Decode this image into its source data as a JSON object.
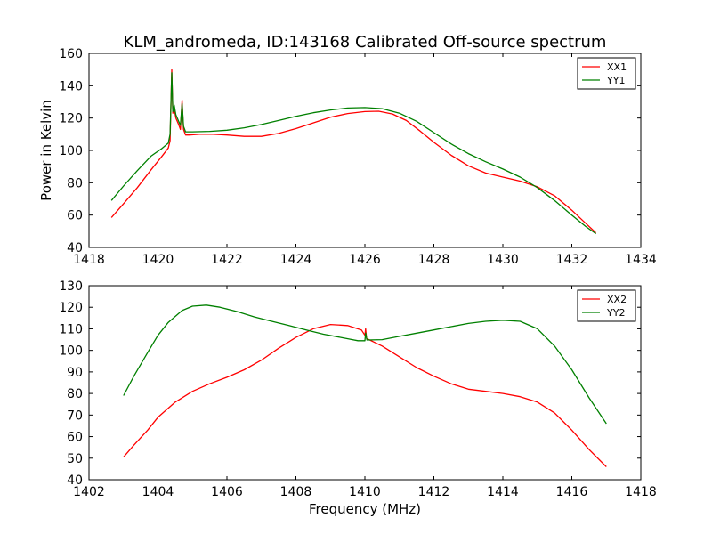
{
  "chart_data": [
    {
      "type": "line",
      "title": "KLM_andromeda, ID:143168 Calibrated Off-source spectrum",
      "xlabel": "",
      "ylabel": "Power in Kelvin",
      "xlim": [
        1418,
        1434
      ],
      "ylim": [
        40,
        160
      ],
      "xticks": [
        1418,
        1420,
        1422,
        1424,
        1426,
        1428,
        1430,
        1432,
        1434
      ],
      "yticks": [
        40,
        60,
        80,
        100,
        120,
        140,
        160
      ],
      "legend": "top-right",
      "grid": false,
      "series": [
        {
          "name": "XX1",
          "color": "#ff0000",
          "points": [
            [
              1418.65,
              58.5
            ],
            [
              1419.0,
              67
            ],
            [
              1419.4,
              77
            ],
            [
              1419.8,
              88
            ],
            [
              1420.1,
              96
            ],
            [
              1420.3,
              101.5
            ],
            [
              1420.35,
              106
            ],
            [
              1420.4,
              150
            ],
            [
              1420.43,
              123
            ],
            [
              1420.47,
              126
            ],
            [
              1420.52,
              120
            ],
            [
              1420.6,
              116
            ],
            [
              1420.65,
              113
            ],
            [
              1420.7,
              131
            ],
            [
              1420.74,
              113
            ],
            [
              1420.8,
              109.5
            ],
            [
              1420.9,
              109.5
            ],
            [
              1421.2,
              110
            ],
            [
              1421.6,
              110
            ],
            [
              1422.0,
              109.5
            ],
            [
              1422.5,
              108.7
            ],
            [
              1423.0,
              108.7
            ],
            [
              1423.5,
              110.5
            ],
            [
              1424.0,
              113.5
            ],
            [
              1424.5,
              117
            ],
            [
              1425.0,
              120.5
            ],
            [
              1425.5,
              122.8
            ],
            [
              1426.0,
              124
            ],
            [
              1426.4,
              124.2
            ],
            [
              1426.8,
              122.5
            ],
            [
              1427.2,
              118.5
            ],
            [
              1427.6,
              112
            ],
            [
              1428.0,
              105
            ],
            [
              1428.5,
              97
            ],
            [
              1429.0,
              90.5
            ],
            [
              1429.5,
              86
            ],
            [
              1430.0,
              83.5
            ],
            [
              1430.5,
              81
            ],
            [
              1431.0,
              77.5
            ],
            [
              1431.5,
              72
            ],
            [
              1432.0,
              63
            ],
            [
              1432.4,
              55
            ],
            [
              1432.7,
              49
            ]
          ]
        },
        {
          "name": "YY1",
          "color": "#008000",
          "points": [
            [
              1418.65,
              69
            ],
            [
              1419.0,
              78
            ],
            [
              1419.4,
              87.5
            ],
            [
              1419.8,
              96.5
            ],
            [
              1420.1,
              101
            ],
            [
              1420.3,
              104.5
            ],
            [
              1420.35,
              110
            ],
            [
              1420.4,
              148
            ],
            [
              1420.43,
              124
            ],
            [
              1420.47,
              128
            ],
            [
              1420.52,
              122
            ],
            [
              1420.6,
              118
            ],
            [
              1420.65,
              115.5
            ],
            [
              1420.7,
              129
            ],
            [
              1420.74,
              115
            ],
            [
              1420.8,
              111.5
            ],
            [
              1421.0,
              111.5
            ],
            [
              1421.5,
              111.8
            ],
            [
              1422.0,
              112.5
            ],
            [
              1422.5,
              114
            ],
            [
              1423.0,
              116
            ],
            [
              1423.5,
              118.5
            ],
            [
              1424.0,
              121
            ],
            [
              1424.5,
              123.3
            ],
            [
              1425.0,
              125
            ],
            [
              1425.5,
              126.2
            ],
            [
              1426.0,
              126.5
            ],
            [
              1426.5,
              125.8
            ],
            [
              1427.0,
              123
            ],
            [
              1427.5,
              118
            ],
            [
              1428.0,
              111
            ],
            [
              1428.5,
              104
            ],
            [
              1429.0,
              98
            ],
            [
              1429.5,
              93
            ],
            [
              1430.0,
              88.5
            ],
            [
              1430.5,
              83.5
            ],
            [
              1431.0,
              77
            ],
            [
              1431.5,
              69
            ],
            [
              1432.0,
              60
            ],
            [
              1432.4,
              53
            ],
            [
              1432.7,
              48.5
            ]
          ]
        }
      ]
    },
    {
      "type": "line",
      "title": "",
      "xlabel": "Frequency (MHz)",
      "ylabel": "",
      "xlim": [
        1402,
        1418
      ],
      "ylim": [
        40,
        130
      ],
      "xticks": [
        1402,
        1404,
        1406,
        1408,
        1410,
        1412,
        1414,
        1416,
        1418
      ],
      "yticks": [
        40,
        50,
        60,
        70,
        80,
        90,
        100,
        110,
        120,
        130
      ],
      "legend": "top-right",
      "grid": false,
      "series": [
        {
          "name": "XX2",
          "color": "#ff0000",
          "points": [
            [
              1403.0,
              50.5
            ],
            [
              1403.3,
              56
            ],
            [
              1403.7,
              63
            ],
            [
              1404.0,
              69
            ],
            [
              1404.5,
              76
            ],
            [
              1405.0,
              81
            ],
            [
              1405.5,
              84.5
            ],
            [
              1406.0,
              87.5
            ],
            [
              1406.5,
              91
            ],
            [
              1407.0,
              95.5
            ],
            [
              1407.5,
              101
            ],
            [
              1408.0,
              106
            ],
            [
              1408.5,
              110
            ],
            [
              1409.0,
              112
            ],
            [
              1409.5,
              111.5
            ],
            [
              1409.9,
              109.5
            ],
            [
              1410.0,
              107
            ],
            [
              1410.02,
              110
            ],
            [
              1410.05,
              105.5
            ],
            [
              1410.5,
              102
            ],
            [
              1411.0,
              97
            ],
            [
              1411.5,
              92
            ],
            [
              1412.0,
              88
            ],
            [
              1412.5,
              84.5
            ],
            [
              1413.0,
              82
            ],
            [
              1413.5,
              81
            ],
            [
              1414.0,
              80
            ],
            [
              1414.5,
              78.5
            ],
            [
              1415.0,
              76
            ],
            [
              1415.5,
              71
            ],
            [
              1416.0,
              63
            ],
            [
              1416.5,
              54
            ],
            [
              1417.0,
              46
            ]
          ]
        },
        {
          "name": "YY2",
          "color": "#008000",
          "points": [
            [
              1403.0,
              79
            ],
            [
              1403.3,
              88
            ],
            [
              1403.7,
              99
            ],
            [
              1404.0,
              107
            ],
            [
              1404.3,
              113
            ],
            [
              1404.7,
              118.5
            ],
            [
              1405.0,
              120.5
            ],
            [
              1405.4,
              121
            ],
            [
              1405.8,
              120
            ],
            [
              1406.3,
              118
            ],
            [
              1406.8,
              115.5
            ],
            [
              1407.3,
              113.5
            ],
            [
              1407.8,
              111.5
            ],
            [
              1408.3,
              109.5
            ],
            [
              1408.8,
              107.5
            ],
            [
              1409.3,
              106
            ],
            [
              1409.8,
              104.5
            ],
            [
              1410.0,
              104.5
            ],
            [
              1410.02,
              108
            ],
            [
              1410.06,
              104.8
            ],
            [
              1410.5,
              105
            ],
            [
              1411.0,
              106.5
            ],
            [
              1411.5,
              108
            ],
            [
              1412.0,
              109.5
            ],
            [
              1412.5,
              111
            ],
            [
              1413.0,
              112.5
            ],
            [
              1413.5,
              113.5
            ],
            [
              1414.0,
              114
            ],
            [
              1414.5,
              113.5
            ],
            [
              1415.0,
              110
            ],
            [
              1415.5,
              102
            ],
            [
              1416.0,
              91
            ],
            [
              1416.5,
              78
            ],
            [
              1417.0,
              66
            ]
          ]
        }
      ]
    }
  ]
}
